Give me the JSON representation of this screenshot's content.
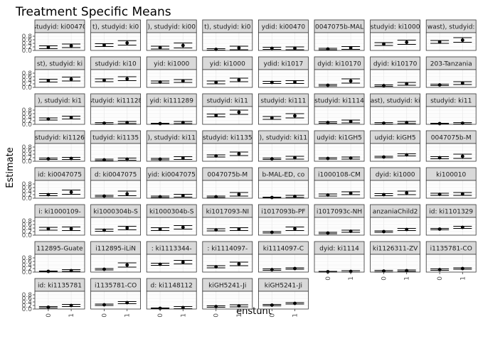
{
  "chart_data": {
    "type": "scatter",
    "title": "Treatment Specific Means",
    "xlabel": "enstunt",
    "ylabel": "Estimate",
    "x_categories": [
      "0",
      "1"
    ],
    "y_ticks": [
      "0.0",
      "0.2",
      "0.4",
      "0.6",
      "0.8"
    ],
    "ylim": [
      0,
      1
    ],
    "grid": true,
    "colors": {
      "panel_bg": "#ffffff",
      "grid": "#ebebeb",
      "strip_bg": "#d9d9d9",
      "border": "#333333",
      "point": "#000000"
    },
    "panels": [
      {
        "label": "studyid: ki00470",
        "values": [
          0.18,
          0.26
        ],
        "ci": [
          [
            0.1,
            0.26
          ],
          [
            0.16,
            0.36
          ]
        ]
      },
      {
        "label": "t), studyid: ki0",
        "values": [
          0.3,
          0.42
        ],
        "ci": [
          [
            0.22,
            0.38
          ],
          [
            0.3,
            0.55
          ]
        ]
      },
      {
        "label": "), studyid: ki00",
        "values": [
          0.16,
          0.28
        ],
        "ci": [
          [
            0.08,
            0.24
          ],
          [
            0.14,
            0.42
          ]
        ]
      },
      {
        "label": "t), studyid: ki0",
        "values": [
          0.06,
          0.14
        ],
        "ci": [
          [
            0.02,
            0.1
          ],
          [
            0.04,
            0.24
          ]
        ]
      },
      {
        "label": "ydid: ki00470",
        "values": [
          0.12,
          0.12
        ],
        "ci": [
          [
            0.06,
            0.18
          ],
          [
            0.04,
            0.2
          ]
        ]
      },
      {
        "label": "0047075b-MAL",
        "values": [
          0.08,
          0.14
        ],
        "ci": [
          [
            0.04,
            0.12
          ],
          [
            0.06,
            0.22
          ]
        ]
      },
      {
        "label": "studyid: ki1000",
        "values": [
          0.36,
          0.46
        ],
        "ci": [
          [
            0.28,
            0.44
          ],
          [
            0.34,
            0.58
          ]
        ]
      },
      {
        "label": "wast), studyid:",
        "values": [
          0.48,
          0.58
        ],
        "ci": [
          [
            0.4,
            0.56
          ],
          [
            0.46,
            0.72
          ]
        ]
      },
      {
        "label": "st), studyid: ki",
        "values": [
          0.38,
          0.46
        ],
        "ci": [
          [
            0.3,
            0.46
          ],
          [
            0.36,
            0.58
          ]
        ]
      },
      {
        "label": "studyid: ki10",
        "values": [
          0.4,
          0.48
        ],
        "ci": [
          [
            0.32,
            0.48
          ],
          [
            0.38,
            0.6
          ]
        ]
      },
      {
        "label": "yid: ki1000",
        "values": [
          0.3,
          0.36
        ],
        "ci": [
          [
            0.24,
            0.36
          ],
          [
            0.28,
            0.44
          ]
        ]
      },
      {
        "label": "yid: ki1000",
        "values": [
          0.28,
          0.42
        ],
        "ci": [
          [
            0.2,
            0.36
          ],
          [
            0.32,
            0.52
          ]
        ]
      },
      {
        "label": "ydid: ki1017",
        "values": [
          0.28,
          0.3
        ],
        "ci": [
          [
            0.22,
            0.34
          ],
          [
            0.22,
            0.38
          ]
        ]
      },
      {
        "label": "dyid: ki10170",
        "values": [
          0.12,
          0.36
        ],
        "ci": [
          [
            0.08,
            0.16
          ],
          [
            0.24,
            0.48
          ]
        ]
      },
      {
        "label": "dyid: ki10170",
        "values": [
          0.1,
          0.2
        ],
        "ci": [
          [
            0.06,
            0.14
          ],
          [
            0.12,
            0.28
          ]
        ]
      },
      {
        "label": "203-Tanzania",
        "values": [
          0.14,
          0.24
        ],
        "ci": [
          [
            0.1,
            0.18
          ],
          [
            0.16,
            0.32
          ]
        ]
      },
      {
        "label": "), studyid: ki1",
        "values": [
          0.3,
          0.38
        ],
        "ci": [
          [
            0.24,
            0.36
          ],
          [
            0.3,
            0.46
          ]
        ]
      },
      {
        "label": "studyid: ki11128",
        "values": [
          0.06,
          0.1
        ],
        "ci": [
          [
            0.02,
            0.1
          ],
          [
            0.04,
            0.16
          ]
        ]
      },
      {
        "label": "yid: ki111289",
        "values": [
          0.04,
          0.1
        ],
        "ci": [
          [
            0.02,
            0.06
          ],
          [
            0.04,
            0.16
          ]
        ]
      },
      {
        "label": "studyid: ki11",
        "values": [
          0.5,
          0.68
        ],
        "ci": [
          [
            0.42,
            0.58
          ],
          [
            0.56,
            0.8
          ]
        ]
      },
      {
        "label": "studyid: ki111",
        "values": [
          0.36,
          0.48
        ],
        "ci": [
          [
            0.28,
            0.44
          ],
          [
            0.36,
            0.6
          ]
        ]
      },
      {
        "label": "studyid: ki1114",
        "values": [
          0.1,
          0.16
        ],
        "ci": [
          [
            0.06,
            0.14
          ],
          [
            0.08,
            0.24
          ]
        ]
      },
      {
        "label": "ast), studyid: ki",
        "values": [
          0.06,
          0.1
        ],
        "ci": [
          [
            0.02,
            0.1
          ],
          [
            0.04,
            0.16
          ]
        ]
      },
      {
        "label": "studyid: ki11",
        "values": [
          0.04,
          0.06
        ],
        "ci": [
          [
            0.02,
            0.06
          ],
          [
            0.02,
            0.1
          ]
        ]
      },
      {
        "label": "studyid: ki1126",
        "values": [
          0.14,
          0.16
        ],
        "ci": [
          [
            0.1,
            0.18
          ],
          [
            0.1,
            0.22
          ]
        ]
      },
      {
        "label": "tudyid: ki1135",
        "values": [
          0.08,
          0.12
        ],
        "ci": [
          [
            0.04,
            0.12
          ],
          [
            0.06,
            0.18
          ]
        ]
      },
      {
        "label": "), studyid: ki11",
        "values": [
          0.12,
          0.18
        ],
        "ci": [
          [
            0.08,
            0.16
          ],
          [
            0.1,
            0.26
          ]
        ]
      },
      {
        "label": "studyid: ki1135",
        "values": [
          0.3,
          0.42
        ],
        "ci": [
          [
            0.24,
            0.36
          ],
          [
            0.32,
            0.52
          ]
        ]
      },
      {
        "label": "), studyid: ki11",
        "values": [
          0.14,
          0.2
        ],
        "ci": [
          [
            0.1,
            0.18
          ],
          [
            0.12,
            0.28
          ]
        ]
      },
      {
        "label": "udyid: ki1GH5",
        "values": [
          0.16,
          0.18
        ],
        "ci": [
          [
            0.12,
            0.2
          ],
          [
            0.12,
            0.24
          ]
        ]
      },
      {
        "label": "udyid: kiGH5",
        "values": [
          0.24,
          0.36
        ],
        "ci": [
          [
            0.2,
            0.28
          ],
          [
            0.3,
            0.42
          ]
        ]
      },
      {
        "label": "0047075b-M",
        "values": [
          0.2,
          0.28
        ],
        "ci": [
          [
            0.14,
            0.26
          ],
          [
            0.16,
            0.4
          ]
        ]
      },
      {
        "label": "id: ki0047075",
        "values": [
          0.2,
          0.34
        ],
        "ci": [
          [
            0.14,
            0.26
          ],
          [
            0.22,
            0.46
          ]
        ]
      },
      {
        "label": "d: ki0047075",
        "values": [
          0.12,
          0.24
        ],
        "ci": [
          [
            0.08,
            0.16
          ],
          [
            0.14,
            0.4
          ]
        ]
      },
      {
        "label": "yid: ki0047075",
        "values": [
          0.08,
          0.14
        ],
        "ci": [
          [
            0.04,
            0.12
          ],
          [
            0.06,
            0.22
          ]
        ]
      },
      {
        "label": "0047075b-M",
        "values": [
          0.08,
          0.22
        ],
        "ci": [
          [
            0.04,
            0.12
          ],
          [
            0.12,
            0.32
          ]
        ]
      },
      {
        "label": "b-MAL-ED, co",
        "values": [
          0.04,
          0.1
        ],
        "ci": [
          [
            0.02,
            0.06
          ],
          [
            0.04,
            0.16
          ]
        ]
      },
      {
        "label": "i1000108-CM",
        "values": [
          0.18,
          0.28
        ],
        "ci": [
          [
            0.12,
            0.24
          ],
          [
            0.2,
            0.36
          ]
        ]
      },
      {
        "label": "dyid: ki1000",
        "values": [
          0.2,
          0.3
        ],
        "ci": [
          [
            0.14,
            0.26
          ],
          [
            0.2,
            0.4
          ]
        ]
      },
      {
        "label": "ki100010",
        "values": [
          0.22,
          0.24
        ],
        "ci": [
          [
            0.16,
            0.28
          ],
          [
            0.16,
            0.32
          ]
        ]
      },
      {
        "label": "i: ki1000109-",
        "values": [
          0.36,
          0.36
        ],
        "ci": [
          [
            0.28,
            0.44
          ],
          [
            0.26,
            0.46
          ]
        ]
      },
      {
        "label": "ki1000304b-S",
        "values": [
          0.28,
          0.4
        ],
        "ci": [
          [
            0.22,
            0.34
          ],
          [
            0.3,
            0.5
          ]
        ]
      },
      {
        "label": "ki1000304b-S",
        "values": [
          0.34,
          0.44
        ],
        "ci": [
          [
            0.26,
            0.42
          ],
          [
            0.34,
            0.54
          ]
        ]
      },
      {
        "label": "ki1017093-NI",
        "values": [
          0.3,
          0.34
        ],
        "ci": [
          [
            0.24,
            0.36
          ],
          [
            0.26,
            0.42
          ]
        ]
      },
      {
        "label": "i1017093b-PF",
        "values": [
          0.16,
          0.36
        ],
        "ci": [
          [
            0.12,
            0.2
          ],
          [
            0.26,
            0.46
          ]
        ]
      },
      {
        "label": "i1017093c-NH",
        "values": [
          0.12,
          0.22
        ],
        "ci": [
          [
            0.08,
            0.16
          ],
          [
            0.16,
            0.28
          ]
        ]
      },
      {
        "label": "anzaniaChild2",
        "values": [
          0.2,
          0.32
        ],
        "ci": [
          [
            0.16,
            0.24
          ],
          [
            0.26,
            0.38
          ]
        ]
      },
      {
        "label": "id: ki1101329",
        "values": [
          0.34,
          0.44
        ],
        "ci": [
          [
            0.3,
            0.38
          ],
          [
            0.38,
            0.5
          ]
        ]
      },
      {
        "label": "112895-Guate",
        "values": [
          0.04,
          0.08
        ],
        "ci": [
          [
            0.02,
            0.06
          ],
          [
            0.04,
            0.14
          ]
        ]
      },
      {
        "label": "i112895-iLiN",
        "values": [
          0.16,
          0.4
        ],
        "ci": [
          [
            0.12,
            0.2
          ],
          [
            0.28,
            0.52
          ]
        ]
      },
      {
        "label": ": ki1113344-",
        "values": [
          0.44,
          0.56
        ],
        "ci": [
          [
            0.38,
            0.5
          ],
          [
            0.46,
            0.66
          ]
        ]
      },
      {
        "label": ": ki1114097-",
        "values": [
          0.3,
          0.46
        ],
        "ci": [
          [
            0.24,
            0.36
          ],
          [
            0.36,
            0.56
          ]
        ]
      },
      {
        "label": "ki1114097-C",
        "values": [
          0.14,
          0.2
        ],
        "ci": [
          [
            0.1,
            0.18
          ],
          [
            0.16,
            0.24
          ]
        ]
      },
      {
        "label": "dyid: ki1114",
        "values": [
          0.02,
          0.04
        ],
        "ci": [
          [
            0.0,
            0.04
          ],
          [
            0.0,
            0.08
          ]
        ]
      },
      {
        "label": "ki1126311-ZV",
        "values": [
          0.06,
          0.08
        ],
        "ci": [
          [
            0.02,
            0.1
          ],
          [
            0.04,
            0.12
          ]
        ]
      },
      {
        "label": "i1135781-CO",
        "values": [
          0.14,
          0.2
        ],
        "ci": [
          [
            0.1,
            0.18
          ],
          [
            0.16,
            0.24
          ]
        ]
      },
      {
        "label": "id: ki1135781",
        "values": [
          0.1,
          0.2
        ],
        "ci": [
          [
            0.06,
            0.14
          ],
          [
            0.14,
            0.26
          ]
        ]
      },
      {
        "label": "i1135781-CO",
        "values": [
          0.24,
          0.36
        ],
        "ci": [
          [
            0.2,
            0.28
          ],
          [
            0.3,
            0.42
          ]
        ]
      },
      {
        "label": "d: ki1148112",
        "values": [
          0.04,
          0.08
        ],
        "ci": [
          [
            0.02,
            0.06
          ],
          [
            0.02,
            0.14
          ]
        ]
      },
      {
        "label": "kiGH5241-Ji",
        "values": [
          0.14,
          0.18
        ],
        "ci": [
          [
            0.1,
            0.18
          ],
          [
            0.12,
            0.24
          ]
        ]
      },
      {
        "label": "kiGH5241-Ji",
        "values": [
          0.22,
          0.32
        ],
        "ci": [
          [
            0.18,
            0.26
          ],
          [
            0.28,
            0.36
          ]
        ]
      }
    ]
  }
}
